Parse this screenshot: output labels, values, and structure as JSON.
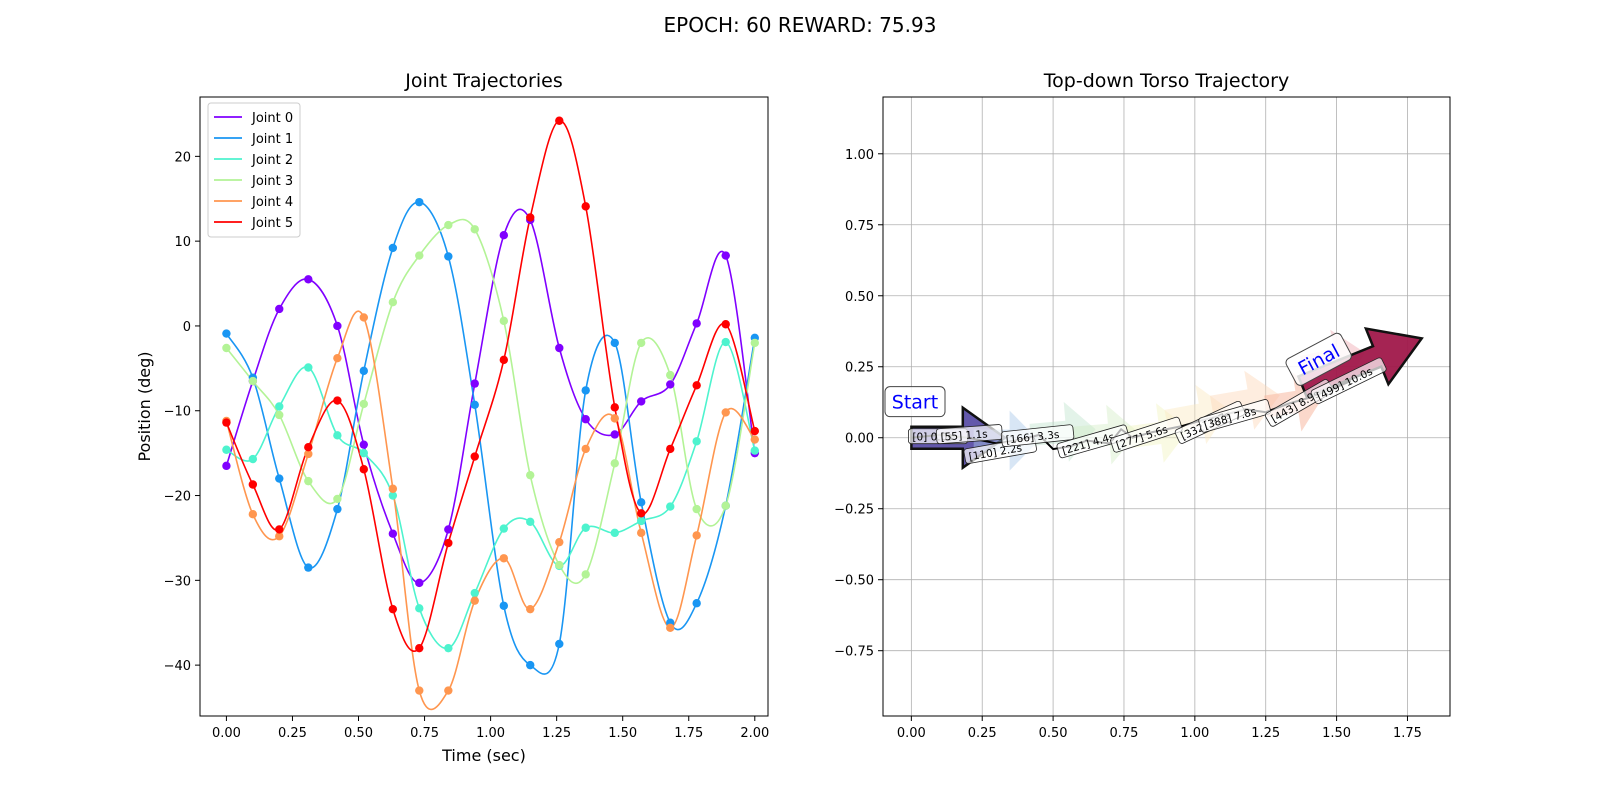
{
  "suptitle": "EPOCH:  60 REWARD:  75.93",
  "chart_data": [
    {
      "type": "line",
      "title": "Joint Trajectories",
      "xlabel": "Time (sec)",
      "ylabel": "Position (deg)",
      "xlim": [
        -0.1,
        2.05
      ],
      "ylim": [
        -46,
        27
      ],
      "xticks": [
        0.0,
        0.25,
        0.5,
        0.75,
        1.0,
        1.25,
        1.5,
        1.75,
        2.0
      ],
      "xtick_labels": [
        "0.00",
        "0.25",
        "0.50",
        "0.75",
        "1.00",
        "1.25",
        "1.50",
        "1.75",
        "2.00"
      ],
      "yticks": [
        20,
        10,
        0,
        -10,
        -20,
        -30,
        -40
      ],
      "ytick_labels": [
        "20",
        "10",
        "0",
        "−10",
        "−20",
        "−30",
        "−40"
      ],
      "legend_position": "upper-left",
      "grid": false,
      "x": [
        0.0,
        0.1,
        0.2,
        0.31,
        0.42,
        0.52,
        0.63,
        0.73,
        0.84,
        0.94,
        1.05,
        1.15,
        1.26,
        1.36,
        1.47,
        1.57,
        1.68,
        1.78,
        1.89,
        2.0
      ],
      "series": [
        {
          "name": "Joint 0",
          "color": "#8000ff",
          "values": [
            -16.5,
            -6.5,
            2.0,
            5.5,
            0.0,
            -14.0,
            -24.5,
            -30.3,
            -24.0,
            -6.8,
            10.7,
            12.5,
            -2.6,
            -11.0,
            -12.8,
            -8.9,
            -6.9,
            0.3,
            8.3,
            -15.0
          ]
        },
        {
          "name": "Joint 1",
          "color": "#1996f3",
          "values": [
            -0.9,
            -6.1,
            -18.0,
            -28.5,
            -21.6,
            -5.3,
            9.2,
            14.6,
            8.2,
            -9.3,
            -33.0,
            -40.0,
            -37.5,
            -7.6,
            -2.0,
            -20.8,
            -35.0,
            -32.7,
            -21.2,
            -1.4
          ]
        },
        {
          "name": "Joint 2",
          "color": "#4df3ce",
          "values": [
            -14.6,
            -15.7,
            -9.5,
            -4.9,
            -12.9,
            -15.0,
            -20.0,
            -33.3,
            -38.0,
            -31.5,
            -23.9,
            -23.1,
            -28.3,
            -23.8,
            -24.4,
            -23.0,
            -21.3,
            -13.6,
            -1.9,
            -14.7
          ]
        },
        {
          "name": "Joint 3",
          "color": "#b3f396",
          "values": [
            -2.6,
            -6.5,
            -10.5,
            -18.3,
            -20.4,
            -9.2,
            2.8,
            8.3,
            11.9,
            11.4,
            0.6,
            -17.6,
            -28.2,
            -29.3,
            -16.2,
            -2.0,
            -5.8,
            -21.6,
            -21.2,
            -2.0
          ]
        },
        {
          "name": "Joint 4",
          "color": "#ff964f",
          "values": [
            -11.2,
            -22.2,
            -24.8,
            -15.1,
            -3.8,
            1.0,
            -19.2,
            -43.0,
            -43.0,
            -32.4,
            -27.4,
            -33.4,
            -25.5,
            -14.5,
            -10.9,
            -24.4,
            -35.6,
            -24.7,
            -10.2,
            -13.4
          ]
        },
        {
          "name": "Joint 5",
          "color": "#ff0000",
          "values": [
            -11.4,
            -18.7,
            -24.0,
            -14.3,
            -8.8,
            -16.9,
            -33.4,
            -38.0,
            -25.6,
            -15.4,
            -4.0,
            12.8,
            24.2,
            14.1,
            -9.6,
            -22.1,
            -14.5,
            -7.0,
            0.2,
            -12.4
          ]
        }
      ]
    },
    {
      "type": "scatter",
      "title": "Top-down Torso Trajectory",
      "xlabel": "",
      "ylabel": "",
      "xlim": [
        -0.1,
        1.9
      ],
      "ylim": [
        -0.98,
        1.2
      ],
      "xticks": [
        0.0,
        0.25,
        0.5,
        0.75,
        1.0,
        1.25,
        1.5,
        1.75
      ],
      "xtick_labels": [
        "0.00",
        "0.25",
        "0.50",
        "0.75",
        "1.00",
        "1.25",
        "1.50",
        "1.75"
      ],
      "yticks": [
        1.0,
        0.75,
        0.5,
        0.25,
        0.0,
        -0.25,
        -0.5,
        -0.75
      ],
      "ytick_labels": [
        "1.00",
        "0.75",
        "0.50",
        "0.25",
        "0.00",
        "−0.25",
        "−0.50",
        "−0.75"
      ],
      "grid": true,
      "path": {
        "color": "#000000",
        "x": [
          0.0,
          0.1,
          0.2,
          0.3,
          0.38,
          0.45,
          0.5,
          0.56,
          0.62,
          0.7,
          0.74,
          0.78,
          0.85,
          0.95,
          1.02,
          1.1,
          1.18,
          1.25,
          1.33,
          1.4,
          1.48,
          1.55
        ],
        "y": [
          0.0,
          0.01,
          0.0,
          -0.02,
          -0.01,
          0.01,
          -0.04,
          -0.03,
          -0.01,
          -0.02,
          0.03,
          0.0,
          0.02,
          0.04,
          0.06,
          0.08,
          0.1,
          0.09,
          0.12,
          0.14,
          0.17,
          0.2
        ]
      },
      "start_label": "Start",
      "final_label": "Final",
      "arrows": [
        {
          "x": 0.0,
          "y": 0.0,
          "x2": 0.33,
          "y2": 0.0,
          "color": "#5b4fa6",
          "opacity": 0.95,
          "bold": true
        },
        {
          "x": 0.22,
          "y": -0.01,
          "x2": 0.45,
          "y2": -0.01,
          "color": "#a8c8e8",
          "opacity": 0.45
        },
        {
          "x": 0.42,
          "y": 0.01,
          "x2": 0.65,
          "y2": 0.03,
          "color": "#b8e0c8",
          "opacity": 0.4
        },
        {
          "x": 0.57,
          "y": 0.0,
          "x2": 0.8,
          "y2": 0.02,
          "color": "#d0ecc0",
          "opacity": 0.4
        },
        {
          "x": 0.75,
          "y": 0.0,
          "x2": 0.98,
          "y2": 0.03,
          "color": "#f2f5c0",
          "opacity": 0.45
        },
        {
          "x": 0.9,
          "y": 0.06,
          "x2": 1.12,
          "y2": 0.1,
          "color": "#fbe8c0",
          "opacity": 0.45
        },
        {
          "x": 1.06,
          "y": 0.11,
          "x2": 1.3,
          "y2": 0.15,
          "color": "#fcd8b8",
          "opacity": 0.45
        },
        {
          "x": 1.25,
          "y": 0.11,
          "x2": 1.45,
          "y2": 0.14,
          "color": "#f7b8a0",
          "opacity": 0.55
        },
        {
          "x": 1.38,
          "y": 0.25,
          "x2": 1.6,
          "y2": 0.3,
          "color": "#f2b8c0",
          "opacity": 0.55
        },
        {
          "x": 1.38,
          "y": 0.18,
          "x2": 1.8,
          "y2": 0.35,
          "color": "#a0184a",
          "opacity": 0.95,
          "bold": true
        }
      ],
      "waypoint_labels": [
        {
          "text": "[0] 0.0s",
          "x": 0.0,
          "y": 0.0,
          "rot": 0
        },
        {
          "text": "[55] 1.1s",
          "x": 0.1,
          "y": 0.0,
          "rot": -4
        },
        {
          "text": "[110] 2.2s",
          "x": 0.2,
          "y": -0.07,
          "rot": -10
        },
        {
          "text": "[166] 3.3s",
          "x": 0.33,
          "y": -0.01,
          "rot": -6
        },
        {
          "text": "[221] 4.4s",
          "x": 0.53,
          "y": -0.05,
          "rot": -16
        },
        {
          "text": "[277] 5.6s",
          "x": 0.72,
          "y": -0.03,
          "rot": -18
        },
        {
          "text": "[332] 6.7s",
          "x": 0.95,
          "y": 0.0,
          "rot": -25
        },
        {
          "text": "[388] 7.8s",
          "x": 1.03,
          "y": 0.04,
          "rot": -16
        },
        {
          "text": "[443] 8.9s",
          "x": 1.27,
          "y": 0.06,
          "rot": -30
        },
        {
          "text": "[499] 10.0s",
          "x": 1.43,
          "y": 0.14,
          "rot": -26
        }
      ]
    }
  ]
}
